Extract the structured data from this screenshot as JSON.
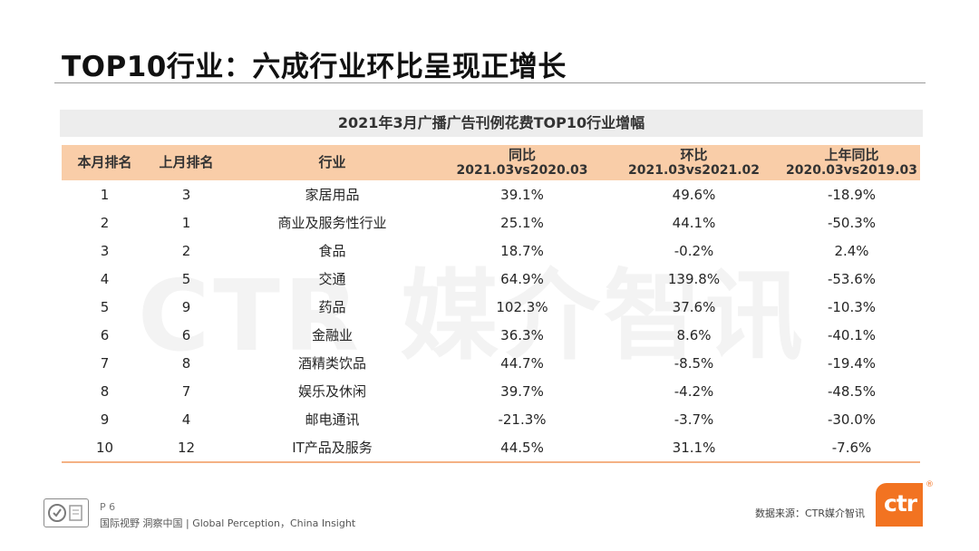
{
  "slide": {
    "title": "TOP10行业：六成行业环比呈现正增长",
    "watermark": "CTR 媒介智讯"
  },
  "table": {
    "caption": "2021年3月广播广告刊例花费TOP10行业增幅",
    "headers": {
      "rank_now": "本月排名",
      "rank_prev": "上月排名",
      "industry": "行业",
      "yoy_title": "同比",
      "yoy_sub": "2021.03vs2020.03",
      "mom_title": "环比",
      "mom_sub": "2021.03vs2021.02",
      "prev_yoy_title": "上年同比",
      "prev_yoy_sub": "2020.03vs2019.03"
    },
    "rows": [
      {
        "rank": "1",
        "prev_rank": "3",
        "industry": "家居用品",
        "yoy": "39.1%",
        "mom": "49.6%",
        "prev_yoy": "-18.9%"
      },
      {
        "rank": "2",
        "prev_rank": "1",
        "industry": "商业及服务性行业",
        "yoy": "25.1%",
        "mom": "44.1%",
        "prev_yoy": "-50.3%"
      },
      {
        "rank": "3",
        "prev_rank": "2",
        "industry": "食品",
        "yoy": "18.7%",
        "mom": "-0.2%",
        "prev_yoy": "2.4%"
      },
      {
        "rank": "4",
        "prev_rank": "5",
        "industry": "交通",
        "yoy": "64.9%",
        "mom": "139.8%",
        "prev_yoy": "-53.6%"
      },
      {
        "rank": "5",
        "prev_rank": "9",
        "industry": "药品",
        "yoy": "102.3%",
        "mom": "37.6%",
        "prev_yoy": "-10.3%"
      },
      {
        "rank": "6",
        "prev_rank": "6",
        "industry": "金融业",
        "yoy": "36.3%",
        "mom": "8.6%",
        "prev_yoy": "-40.1%"
      },
      {
        "rank": "7",
        "prev_rank": "8",
        "industry": "酒精类饮品",
        "yoy": "44.7%",
        "mom": "-8.5%",
        "prev_yoy": "-19.4%"
      },
      {
        "rank": "8",
        "prev_rank": "7",
        "industry": "娱乐及休闲",
        "yoy": "39.7%",
        "mom": "-4.2%",
        "prev_yoy": "-48.5%"
      },
      {
        "rank": "9",
        "prev_rank": "4",
        "industry": "邮电通讯",
        "yoy": "-21.3%",
        "mom": "-3.7%",
        "prev_yoy": "-30.0%"
      },
      {
        "rank": "10",
        "prev_rank": "12",
        "industry": "IT产品及服务",
        "yoy": "44.5%",
        "mom": "31.1%",
        "prev_yoy": "-7.6%"
      }
    ]
  },
  "footer": {
    "page": "P 6",
    "slogan": "国际视野  洞察中国 | Global Perception，China Insight",
    "source": "数据来源：CTR媒介智讯",
    "logo_text": "ctr",
    "registered": "®"
  },
  "colors": {
    "header_fill": "#f9cda8",
    "caption_fill": "#ededed",
    "accent": "#f27321"
  }
}
